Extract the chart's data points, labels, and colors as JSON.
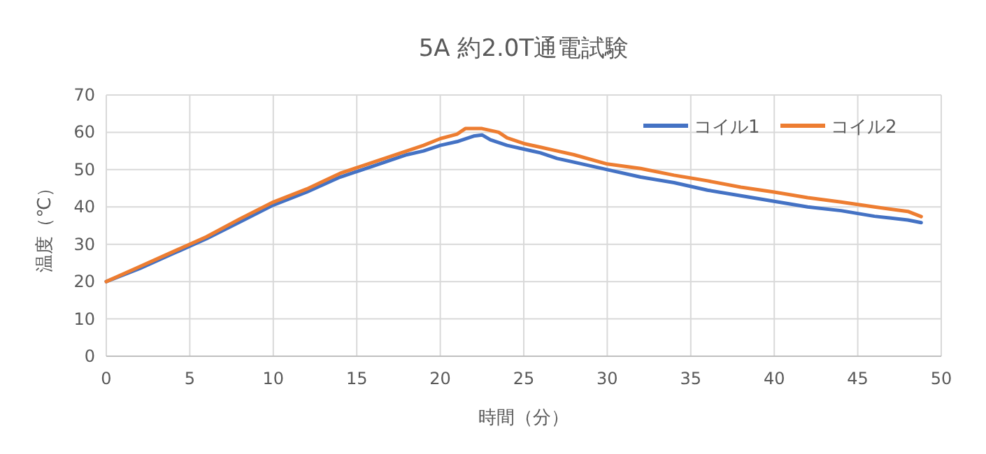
{
  "chart_data": {
    "type": "line",
    "title": "5A 約2.0T通電試験",
    "xlabel": "時間（分）",
    "ylabel": "温度（℃）",
    "xlim": [
      0,
      50
    ],
    "xticks": [
      0,
      5,
      10,
      15,
      20,
      25,
      30,
      35,
      40,
      45,
      50
    ],
    "ylim": [
      0,
      70
    ],
    "yticks": [
      0,
      10,
      20,
      30,
      40,
      50,
      60,
      70
    ],
    "grid": true,
    "legend": "top right",
    "line_style": "solid",
    "marker": "none",
    "series": [
      {
        "name": "コイル1",
        "color": "#4472c4",
        "x": [
          0,
          2,
          4,
          6,
          8,
          10,
          12,
          14,
          16,
          18,
          19,
          20,
          21,
          22,
          22.5,
          23,
          24,
          25,
          26,
          27,
          28,
          30,
          32,
          34,
          36,
          38,
          40,
          42,
          44,
          46,
          48,
          48.8
        ],
        "values": [
          20,
          23.5,
          27.5,
          31.5,
          36,
          40.5,
          44,
          48,
          51,
          54,
          55,
          56.5,
          57.5,
          59,
          59.3,
          58,
          56.5,
          55.5,
          54.5,
          53,
          52,
          50,
          48,
          46.5,
          44.5,
          43,
          41.5,
          40,
          39,
          37.5,
          36.5,
          35.8
        ]
      },
      {
        "name": "コイル2",
        "color": "#ed7d31",
        "x": [
          0,
          2,
          4,
          6,
          8,
          10,
          12,
          14,
          16,
          18,
          19,
          20,
          21,
          21.5,
          22.5,
          23.5,
          24,
          25,
          26,
          27,
          28,
          30,
          32,
          34,
          36,
          38,
          40,
          42,
          44,
          46,
          48,
          48.8
        ],
        "values": [
          20,
          24,
          28,
          32,
          36.8,
          41.3,
          44.8,
          49,
          52,
          55,
          56.5,
          58.3,
          59.5,
          61,
          61,
          60,
          58.5,
          57,
          56,
          55,
          54,
          51.5,
          50.3,
          48.5,
          47,
          45.3,
          44,
          42.5,
          41.3,
          40,
          38.8,
          37.4
        ]
      }
    ]
  }
}
